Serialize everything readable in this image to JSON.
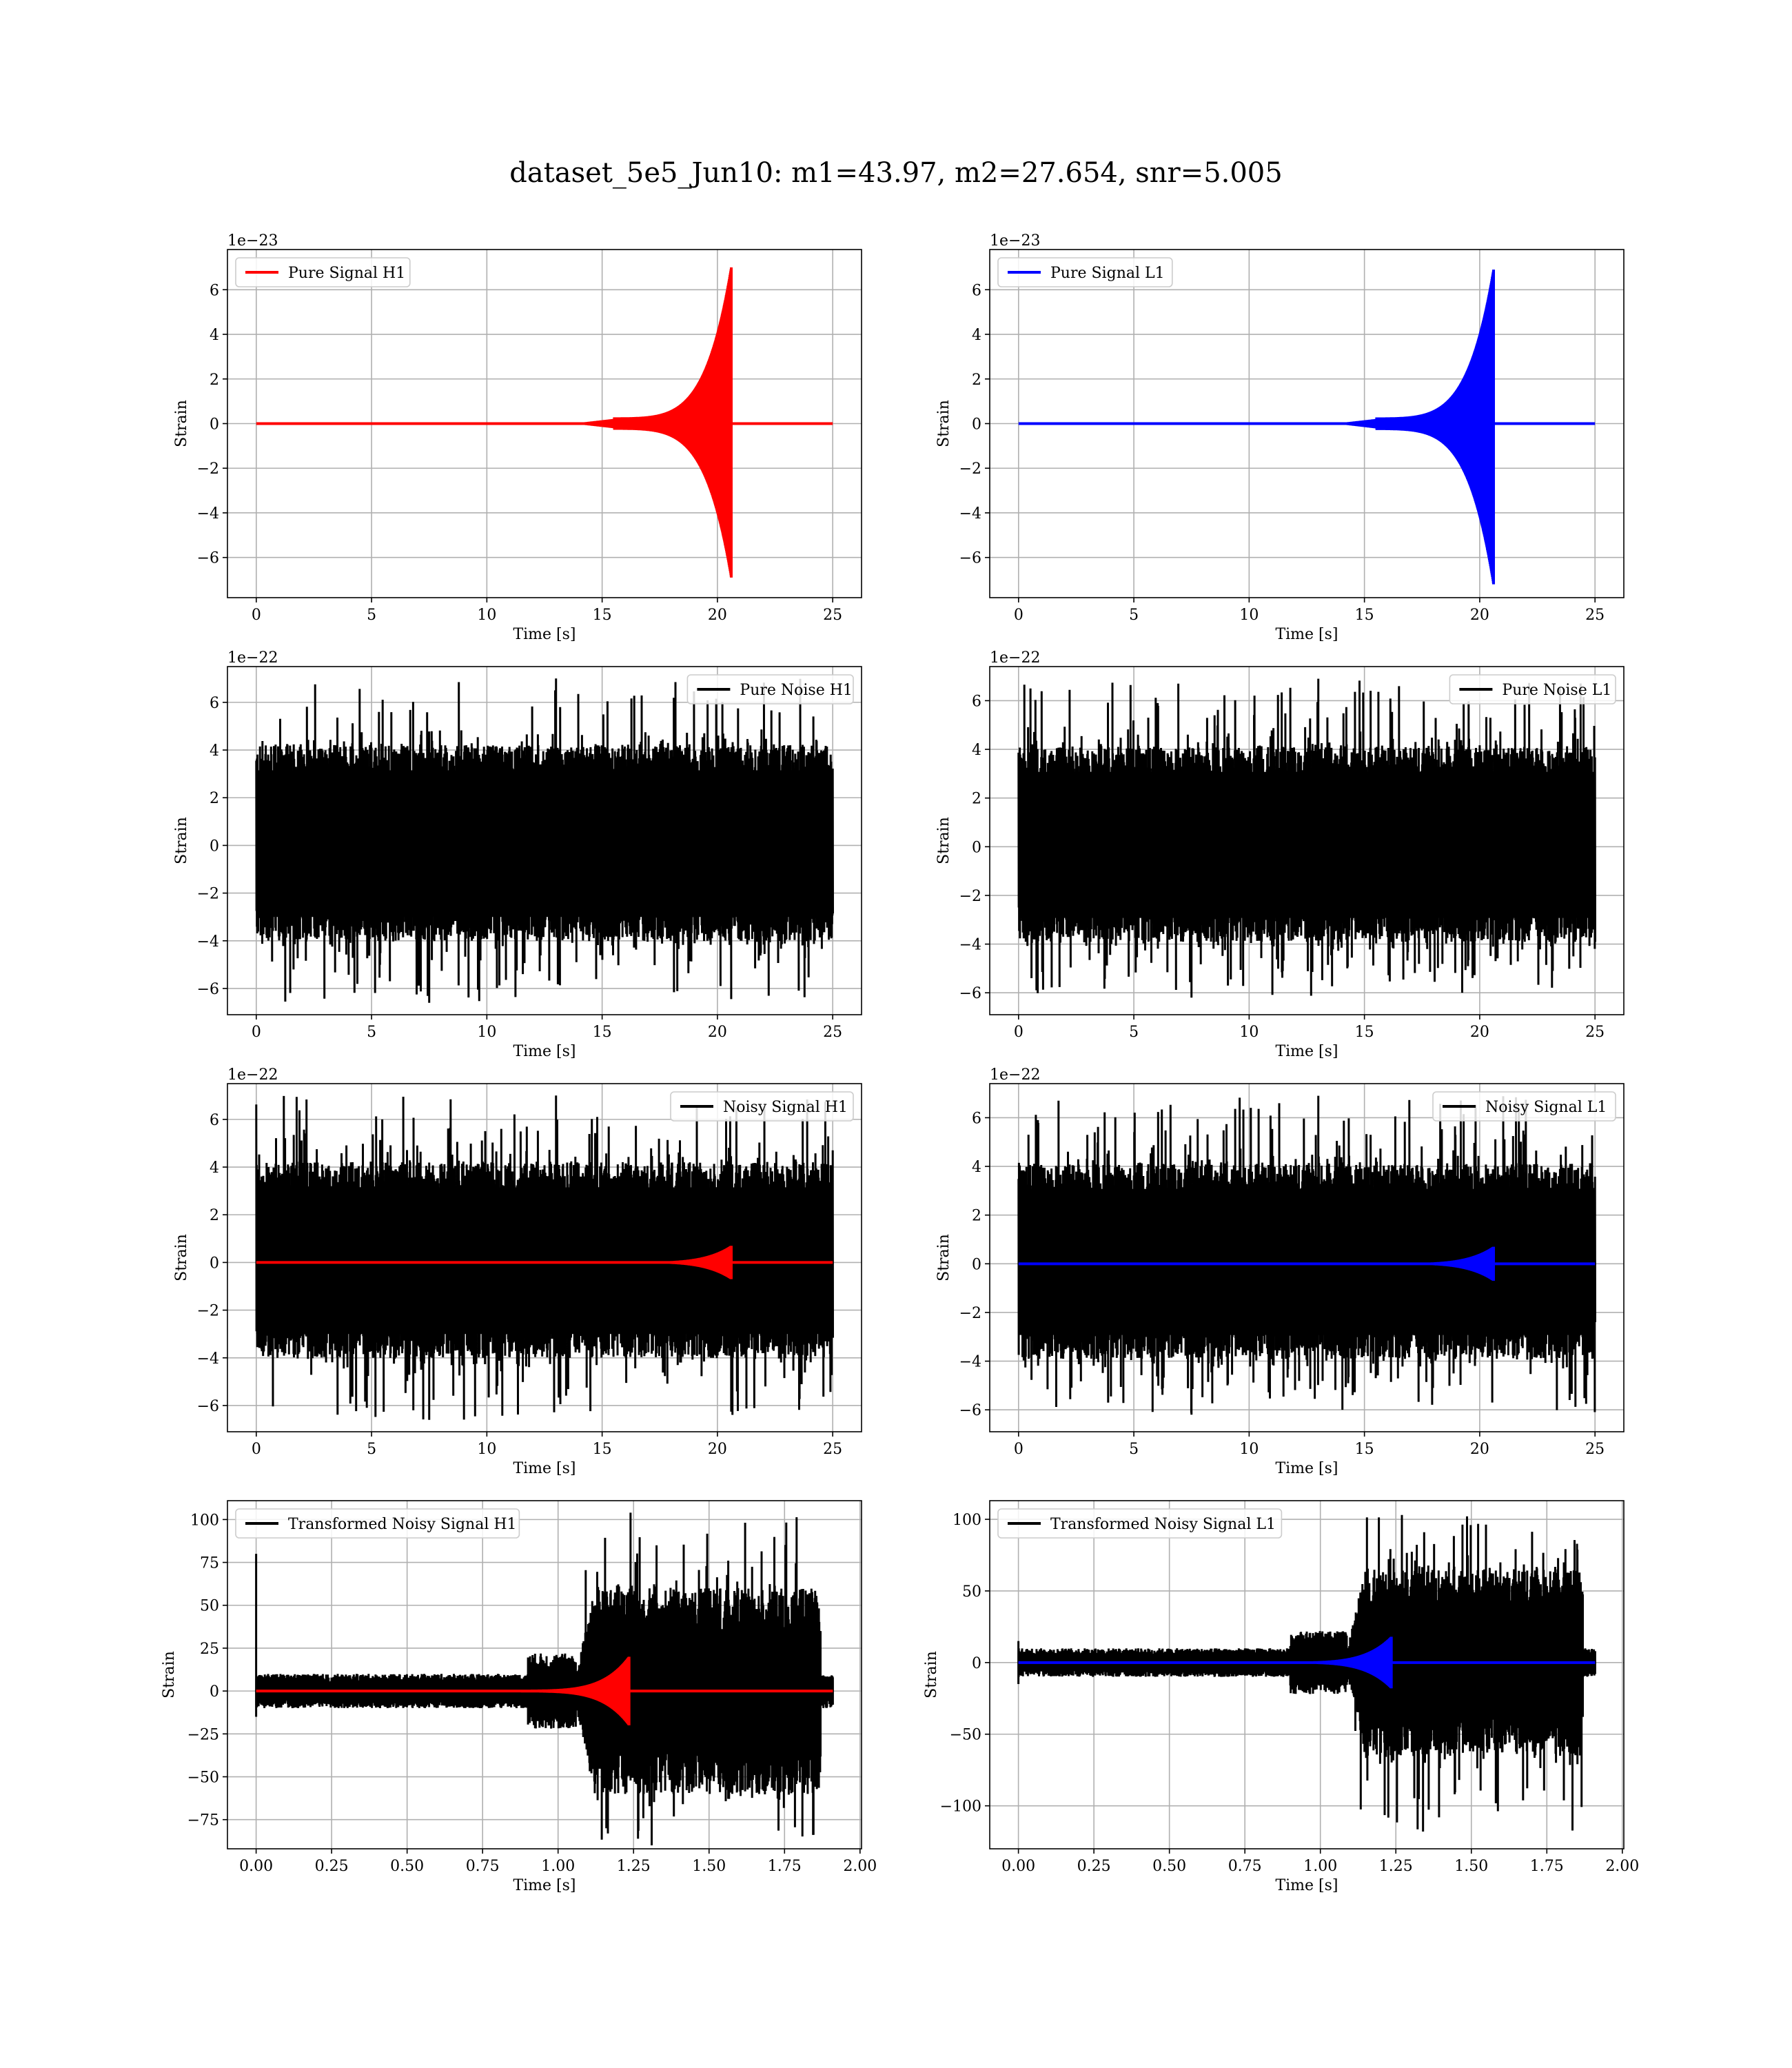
{
  "title": "dataset_5e5_Jun10: m1=43.97, m2=27.654, snr=5.005",
  "chart_data": [
    {
      "type": "line",
      "xlabel": "Time [s]",
      "ylabel": "Strain",
      "offset_text": "1e−23",
      "xlim": [
        -1.25,
        26.25
      ],
      "ylim": [
        -7.8,
        7.8
      ],
      "xticks": [
        0,
        5,
        10,
        15,
        20,
        25
      ],
      "xtick_labels": [
        "0",
        "5",
        "10",
        "15",
        "20",
        "25"
      ],
      "yticks": [
        -6,
        -4,
        -2,
        0,
        2,
        4,
        6
      ],
      "ytick_labels": [
        "−6",
        "−4",
        "−2",
        "0",
        "2",
        "4",
        "6"
      ],
      "grid": true,
      "legend_position": "upper left",
      "series": [
        {
          "name": "Pure Signal H1",
          "kind": "chirp",
          "color": "#ff0000",
          "x_start": 0,
          "x_end": 25,
          "merger": 20.6,
          "peak": 7.0,
          "neg_peak": -6.9
        }
      ]
    },
    {
      "type": "line",
      "xlabel": "Time [s]",
      "ylabel": "Strain",
      "offset_text": "1e−23",
      "xlim": [
        -1.25,
        26.25
      ],
      "ylim": [
        -7.8,
        7.8
      ],
      "xticks": [
        0,
        5,
        10,
        15,
        20,
        25
      ],
      "xtick_labels": [
        "0",
        "5",
        "10",
        "15",
        "20",
        "25"
      ],
      "yticks": [
        -6,
        -4,
        -2,
        0,
        2,
        4,
        6
      ],
      "ytick_labels": [
        "−6",
        "−4",
        "−2",
        "0",
        "2",
        "4",
        "6"
      ],
      "grid": true,
      "legend_position": "upper left",
      "series": [
        {
          "name": "Pure Signal L1",
          "kind": "chirp",
          "color": "#0000ff",
          "x_start": 0,
          "x_end": 25,
          "merger": 20.6,
          "peak": 6.9,
          "neg_peak": -7.2
        }
      ]
    },
    {
      "type": "line",
      "xlabel": "Time [s]",
      "ylabel": "Strain",
      "offset_text": "1e−22",
      "xlim": [
        -1.25,
        26.25
      ],
      "ylim": [
        -7.1,
        7.5
      ],
      "xticks": [
        0,
        5,
        10,
        15,
        20,
        25
      ],
      "xtick_labels": [
        "0",
        "5",
        "10",
        "15",
        "20",
        "25"
      ],
      "yticks": [
        -6,
        -4,
        -2,
        0,
        2,
        4,
        6
      ],
      "ytick_labels": [
        "−6",
        "−4",
        "−2",
        "0",
        "2",
        "4",
        "6"
      ],
      "grid": true,
      "legend_position": "upper right",
      "series": [
        {
          "name": "Pure Noise H1",
          "kind": "noise",
          "color": "#000000",
          "x_start": 0,
          "x_end": 25,
          "band": [
            -4.0,
            4.2
          ],
          "max": 7.0,
          "min": -6.6
        }
      ]
    },
    {
      "type": "line",
      "xlabel": "Time [s]",
      "ylabel": "Strain",
      "offset_text": "1e−22",
      "xlim": [
        -1.25,
        26.25
      ],
      "ylim": [
        -6.9,
        7.4
      ],
      "xticks": [
        0,
        5,
        10,
        15,
        20,
        25
      ],
      "xtick_labels": [
        "0",
        "5",
        "10",
        "15",
        "20",
        "25"
      ],
      "yticks": [
        -6,
        -4,
        -2,
        0,
        2,
        4,
        6
      ],
      "ytick_labels": [
        "−6",
        "−4",
        "−2",
        "0",
        "2",
        "4",
        "6"
      ],
      "grid": true,
      "legend_position": "upper right",
      "series": [
        {
          "name": "Pure Noise L1",
          "kind": "noise",
          "color": "#000000",
          "x_start": 0,
          "x_end": 25,
          "band": [
            -3.9,
            4.1
          ],
          "max": 6.9,
          "min": -6.2
        }
      ]
    },
    {
      "type": "line",
      "xlabel": "Time [s]",
      "ylabel": "Strain",
      "offset_text": "1e−22",
      "xlim": [
        -1.25,
        26.25
      ],
      "ylim": [
        -7.1,
        7.5
      ],
      "xticks": [
        0,
        5,
        10,
        15,
        20,
        25
      ],
      "xtick_labels": [
        "0",
        "5",
        "10",
        "15",
        "20",
        "25"
      ],
      "yticks": [
        -6,
        -4,
        -2,
        0,
        2,
        4,
        6
      ],
      "ytick_labels": [
        "−6",
        "−4",
        "−2",
        "0",
        "2",
        "4",
        "6"
      ],
      "grid": true,
      "legend_position": "upper right",
      "series": [
        {
          "name": "Noisy Signal H1",
          "kind": "noise",
          "color": "#000000",
          "x_start": 0,
          "x_end": 25,
          "band": [
            -4.0,
            4.2
          ],
          "max": 7.0,
          "min": -6.6
        },
        {
          "kind": "chirp",
          "color": "#ff0000",
          "x_start": 0,
          "x_end": 25,
          "merger": 20.6,
          "peak": 0.7,
          "neg_peak": -0.7
        }
      ]
    },
    {
      "type": "line",
      "xlabel": "Time [s]",
      "ylabel": "Strain",
      "offset_text": "1e−22",
      "xlim": [
        -1.25,
        26.25
      ],
      "ylim": [
        -6.9,
        7.4
      ],
      "xticks": [
        0,
        5,
        10,
        15,
        20,
        25
      ],
      "xtick_labels": [
        "0",
        "5",
        "10",
        "15",
        "20",
        "25"
      ],
      "yticks": [
        -6,
        -4,
        -2,
        0,
        2,
        4,
        6
      ],
      "ytick_labels": [
        "−6",
        "−4",
        "−2",
        "0",
        "2",
        "4",
        "6"
      ],
      "grid": true,
      "legend_position": "upper right",
      "series": [
        {
          "name": "Noisy Signal L1",
          "kind": "noise",
          "color": "#000000",
          "x_start": 0,
          "x_end": 25,
          "band": [
            -3.9,
            4.1
          ],
          "max": 6.9,
          "min": -6.2
        },
        {
          "kind": "chirp",
          "color": "#0000ff",
          "x_start": 0,
          "x_end": 25,
          "merger": 20.6,
          "peak": 0.7,
          "neg_peak": -0.7
        }
      ]
    },
    {
      "type": "line",
      "xlabel": "Time [s]",
      "ylabel": "Strain",
      "offset_text": "",
      "xlim": [
        -0.095,
        2.005
      ],
      "ylim": [
        -92,
        111
      ],
      "xticks": [
        0,
        0.25,
        0.5,
        0.75,
        1.0,
        1.25,
        1.5,
        1.75,
        2.0
      ],
      "xtick_labels": [
        "0.00",
        "0.25",
        "0.50",
        "0.75",
        "1.00",
        "1.25",
        "1.50",
        "1.75",
        "2.00"
      ],
      "yticks": [
        -75,
        -50,
        -25,
        0,
        25,
        50,
        75,
        100
      ],
      "ytick_labels": [
        "−75",
        "−50",
        "−25",
        "0",
        "25",
        "50",
        "75",
        "100"
      ],
      "grid": true,
      "legend_position": "upper left",
      "series": [
        {
          "name": "Transformed Noisy Signal H1",
          "kind": "whitened",
          "color": "#000000",
          "x_start": 0,
          "x_end": 1.91,
          "quiet_band": [
            -10,
            10
          ],
          "burst_start": 1.06,
          "burst_end": 1.87,
          "burst_band": [
            -60,
            60
          ],
          "max": 104,
          "min": -90,
          "spike": 80
        },
        {
          "kind": "chirp",
          "color": "#ff0000",
          "x_start": 0,
          "x_end": 1.91,
          "merger": 1.235,
          "peak": 20,
          "neg_peak": -20
        }
      ]
    },
    {
      "type": "line",
      "xlabel": "Time [s]",
      "ylabel": "Strain",
      "offset_text": "",
      "xlim": [
        -0.095,
        2.005
      ],
      "ylim": [
        -130,
        113
      ],
      "xticks": [
        0,
        0.25,
        0.5,
        0.75,
        1.0,
        1.25,
        1.5,
        1.75,
        2.0
      ],
      "xtick_labels": [
        "0.00",
        "0.25",
        "0.50",
        "0.75",
        "1.00",
        "1.25",
        "1.50",
        "1.75",
        "2.00"
      ],
      "yticks": [
        -100,
        -50,
        0,
        50,
        100
      ],
      "ytick_labels": [
        "−100",
        "−50",
        "0",
        "50",
        "100"
      ],
      "grid": true,
      "legend_position": "upper left",
      "series": [
        {
          "name": "Transformed Noisy Signal L1",
          "kind": "whitened",
          "color": "#000000",
          "x_start": 0,
          "x_end": 1.91,
          "quiet_band": [
            -10,
            10
          ],
          "burst_start": 1.09,
          "burst_end": 1.87,
          "burst_band": [
            -65,
            65
          ],
          "max": 103,
          "min": -118,
          "spike": 15
        },
        {
          "kind": "chirp",
          "color": "#0000ff",
          "x_start": 0,
          "x_end": 1.91,
          "merger": 1.235,
          "peak": 18,
          "neg_peak": -18
        }
      ]
    }
  ]
}
